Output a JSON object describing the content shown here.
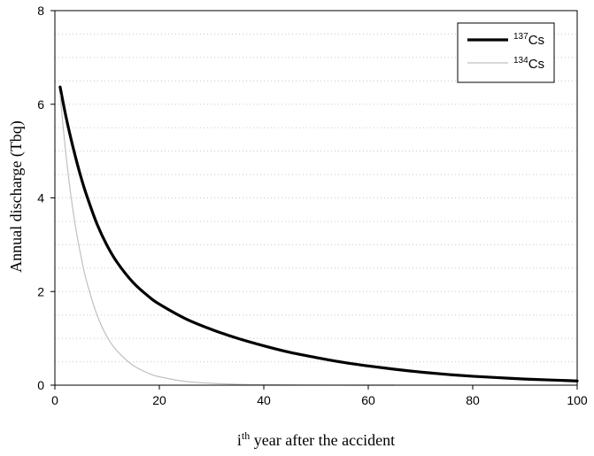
{
  "chart_data": {
    "type": "line",
    "xlabel": {
      "base": "i",
      "sup": "th",
      "rest": " year after the accident"
    },
    "ylabel": "Annual discharge (Tbq)",
    "xlim": [
      0,
      100
    ],
    "ylim": [
      0,
      8
    ],
    "x_ticks": [
      0,
      20,
      40,
      60,
      80,
      100
    ],
    "y_ticks": [
      0,
      2,
      4,
      6,
      8
    ],
    "grid": "horizontal dotted",
    "legend_position": "top-right",
    "series": [
      {
        "name": "137Cs",
        "label": {
          "sup": "137",
          "base": "Cs"
        },
        "color": "#000000",
        "line": "thick",
        "x": [
          1,
          2,
          3,
          4,
          5,
          6,
          8,
          10,
          12,
          15,
          18,
          20,
          25,
          30,
          35,
          40,
          45,
          50,
          55,
          60,
          65,
          70,
          75,
          80,
          85,
          90,
          95,
          100
        ],
        "y": [
          6.37,
          5.8,
          5.3,
          4.85,
          4.44,
          4.08,
          3.46,
          2.98,
          2.61,
          2.19,
          1.89,
          1.73,
          1.42,
          1.19,
          1.0,
          0.84,
          0.7,
          0.59,
          0.49,
          0.41,
          0.34,
          0.28,
          0.23,
          0.19,
          0.16,
          0.13,
          0.11,
          0.09
        ]
      },
      {
        "name": "134Cs",
        "label": {
          "sup": "134",
          "base": "Cs"
        },
        "color": "#c0c0c0",
        "line": "thin",
        "x": [
          1,
          2,
          3,
          4,
          5,
          6,
          8,
          10,
          12,
          15,
          18,
          20,
          25,
          30,
          35,
          40,
          45,
          50,
          55,
          60,
          65
        ],
        "y": [
          6.2,
          5.05,
          4.1,
          3.35,
          2.75,
          2.25,
          1.52,
          1.03,
          0.72,
          0.42,
          0.25,
          0.18,
          0.08,
          0.04,
          0.02,
          0.01,
          0.005,
          0.002,
          0.001,
          0.0005,
          0.0002
        ]
      }
    ]
  }
}
